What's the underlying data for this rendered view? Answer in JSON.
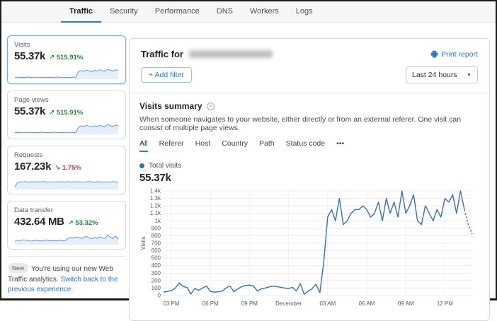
{
  "colors": {
    "accent_blue": "#2e78d2",
    "chart_blue": "#3b6fb3",
    "green": "#27813f",
    "red": "#cf3b4d"
  },
  "nav": {
    "tabs": [
      {
        "label": "Traffic",
        "active": true
      },
      {
        "label": "Security",
        "active": false
      },
      {
        "label": "Performance",
        "active": false
      },
      {
        "label": "DNS",
        "active": false
      },
      {
        "label": "Workers",
        "active": false
      },
      {
        "label": "Logs",
        "active": false
      }
    ]
  },
  "sidebar": {
    "cards": [
      {
        "label": "Visits",
        "value": "55.37k",
        "arrow": "↗",
        "delta": "515.91%",
        "direction": "up",
        "selected": true
      },
      {
        "label": "Page views",
        "value": "55.37k",
        "arrow": "↗",
        "delta": "515.91%",
        "direction": "up",
        "selected": false
      },
      {
        "label": "Requests",
        "value": "167.23k",
        "arrow": "↘",
        "delta": "1.75%",
        "direction": "down",
        "selected": false
      },
      {
        "label": "Data transfer",
        "value": "432.64 MB",
        "arrow": "↗",
        "delta": "53.32%",
        "direction": "up",
        "selected": false
      }
    ],
    "notice": {
      "badge": "New",
      "text": "You're using our new Web Traffic analytics.",
      "link": "Switch back to the previous experience."
    }
  },
  "main": {
    "title_prefix": "Traffic for",
    "print_report": "Print report",
    "add_filter_label": "+ Add filter",
    "time_range": "Last 24 hours",
    "section": {
      "title": "Visits summary",
      "description": "When someone navigates to your website, either directly or from an external referer. One visit can consist of multiple page views.",
      "tabs": [
        {
          "label": "All",
          "active": true
        },
        {
          "label": "Referer",
          "active": false
        },
        {
          "label": "Host",
          "active": false
        },
        {
          "label": "Country",
          "active": false
        },
        {
          "label": "Path",
          "active": false
        },
        {
          "label": "Status code",
          "active": false
        },
        {
          "label": "•••",
          "active": false
        }
      ],
      "legend_label": "Total visits",
      "total": "55.37k"
    }
  },
  "chart_data": [
    {
      "name": "visits-main",
      "type": "line",
      "title": "Total visits over last 24 hours",
      "ylabel": "Visits",
      "ylim": [
        0,
        1400
      ],
      "grid": true,
      "legend_position": "top-left",
      "line_color": "#3b6fb3",
      "ytick_values": [
        0,
        100,
        200,
        300,
        400,
        500,
        600,
        700,
        800,
        900,
        1000,
        1100,
        1200,
        1300,
        1400
      ],
      "ytick_labels": [
        "0",
        "100",
        "200",
        "300",
        "400",
        "500",
        "600",
        "700",
        "800",
        "900",
        "1k",
        "1.1k",
        "1.2k",
        "1.3k",
        "1.4k"
      ],
      "xtick_indices": [
        2,
        12,
        22,
        32,
        42,
        52,
        62,
        72
      ],
      "xtick_labels": [
        "03 PM",
        "06 PM",
        "09 PM",
        "December",
        "03 AM",
        "06 AM",
        "09 AM",
        "12 PM"
      ],
      "values": [
        45,
        55,
        65,
        100,
        170,
        120,
        110,
        20,
        95,
        70,
        100,
        130,
        55,
        45,
        50,
        60,
        100,
        130,
        50,
        90,
        120,
        135,
        140,
        130,
        60,
        90,
        100,
        115,
        125,
        120,
        110,
        100,
        95,
        110,
        60,
        160,
        15,
        60,
        90,
        150,
        40,
        450,
        1050,
        1150,
        1000,
        1300,
        950,
        1000,
        1100,
        1150,
        1150,
        1200,
        1150,
        1050,
        1100,
        1250,
        1000,
        1300,
        1100,
        1250,
        1050,
        1400,
        1100,
        1200,
        1350,
        1000,
        950,
        1200,
        1100,
        1000,
        1150,
        1050,
        1300,
        1250,
        1350,
        1100,
        1400,
        1150,
        950,
        820
      ],
      "dashed_from_index": 77
    },
    {
      "name": "spark-visits",
      "type": "sparkline",
      "line_color": "#5f94cb",
      "fill_color": "#d6e6f7",
      "values": [
        10,
        12,
        9,
        11,
        10,
        13,
        9,
        10,
        12,
        10,
        9,
        12,
        10,
        11,
        9,
        10,
        13,
        11,
        10,
        9,
        11,
        10,
        12,
        10,
        58,
        66,
        60,
        70,
        62,
        58,
        68,
        60,
        72,
        64,
        60,
        76,
        68,
        62,
        72,
        66
      ]
    },
    {
      "name": "spark-pageviews",
      "type": "sparkline",
      "line_color": "#5f94cb",
      "fill_color": "#d6e6f7",
      "values": [
        9,
        11,
        10,
        12,
        9,
        12,
        10,
        11,
        9,
        10,
        12,
        11,
        9,
        10,
        11,
        12,
        10,
        9,
        11,
        10,
        12,
        11,
        10,
        9,
        56,
        64,
        58,
        68,
        60,
        56,
        66,
        58,
        70,
        62,
        58,
        74,
        66,
        60,
        70,
        64
      ]
    },
    {
      "name": "spark-requests",
      "type": "sparkline",
      "line_color": "#5f94cb",
      "fill_color": "#d6e6f7",
      "values": [
        15,
        50,
        58,
        56,
        60,
        55,
        58,
        57,
        59,
        56,
        58,
        60,
        55,
        57,
        58,
        56,
        59,
        57,
        58,
        55,
        60,
        56,
        58,
        57,
        59,
        56,
        55,
        58,
        60,
        57,
        56,
        58,
        59,
        56,
        57,
        58,
        55,
        59,
        57,
        52
      ]
    },
    {
      "name": "spark-transfer",
      "type": "sparkline",
      "line_color": "#5f94cb",
      "fill_color": "#d6e6f7",
      "values": [
        22,
        30,
        26,
        34,
        32,
        28,
        24,
        27,
        31,
        29,
        25,
        29,
        33,
        27,
        27,
        29,
        25,
        31,
        27,
        29,
        44,
        54,
        48,
        58,
        56,
        46,
        53,
        63,
        48,
        44,
        53,
        46,
        58,
        50,
        46,
        72,
        58,
        44,
        66,
        38
      ]
    }
  ]
}
